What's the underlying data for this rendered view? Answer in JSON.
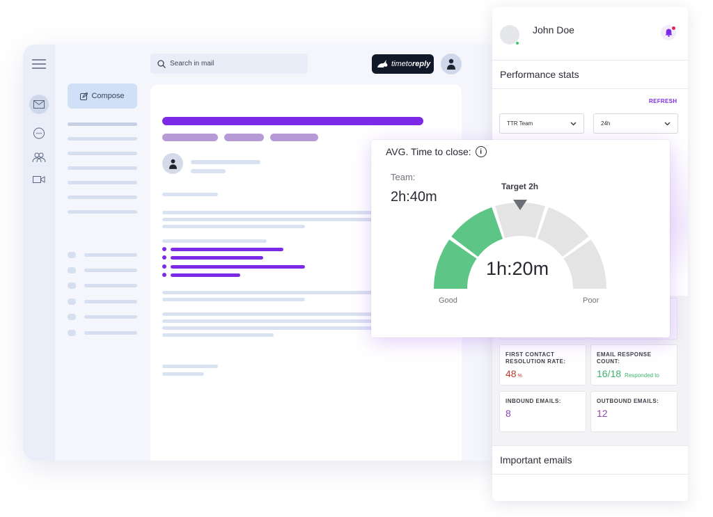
{
  "mail": {
    "compose_label": "Compose",
    "search_placeholder": "Search in mail",
    "brand_prefix": "timeto",
    "brand_suffix": "reply"
  },
  "panel": {
    "user_name": "John Doe",
    "performance_title": "Performance stats",
    "refresh_label": "REFRESH",
    "team_select": "TTR Team",
    "range_select": "24h",
    "important_title": "Important emails",
    "stats": [
      {
        "label": "FIRST CONTACT RESOLUTION RATE:",
        "value": "48",
        "unit": "%",
        "note": "",
        "color": "#c0392b"
      },
      {
        "label": "EMAIL RESPONSE COUNT:",
        "value": "16/18",
        "unit": "",
        "note": "Responded to",
        "color": "#3cb371"
      },
      {
        "label": "INBOUND EMAILS:",
        "value": "8",
        "unit": "",
        "note": "",
        "color": "#8e44ad"
      },
      {
        "label": "OUTBOUND EMAILS:",
        "value": "12",
        "unit": "",
        "note": "",
        "color": "#8e44ad"
      }
    ]
  },
  "gauge": {
    "title": "AVG. Time to close:",
    "info_glyph": "i",
    "team_label": "Team:",
    "team_value": "2h:40m",
    "target_label": "Target 2h",
    "center_value": "1h:20m",
    "good_label": "Good",
    "poor_label": "Poor",
    "segments_total": 5,
    "segments_filled": 2,
    "colors": {
      "filled": "#5dc686",
      "empty": "#e4e4e4",
      "marker": "#6b6e74"
    }
  },
  "colors": {
    "accent": "#7c2ae8",
    "lavender": "#b59ad6",
    "placeholder": "#d9e2f1"
  }
}
